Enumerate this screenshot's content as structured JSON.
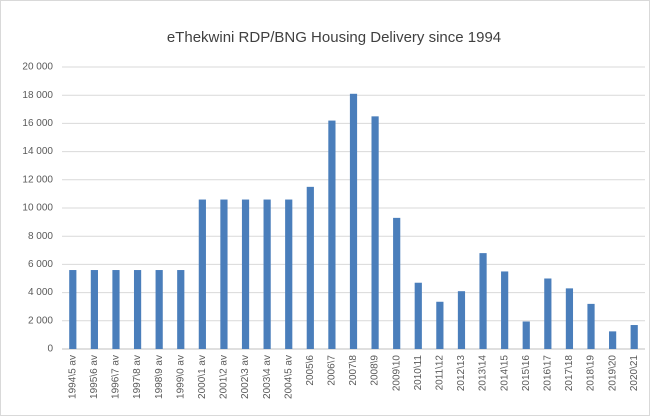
{
  "chart_data": {
    "type": "bar",
    "title": "eThekwini RDP/BNG Housing Delivery since 1994",
    "categories": [
      "1994\\5 av",
      "1995\\6 av",
      "1996\\7 av",
      "1997\\8 av",
      "1998\\9 av",
      "1999\\0 av",
      "2000\\1 av",
      "2001\\2 av",
      "2002\\3 av",
      "2003\\4 av",
      "2004\\5 av",
      "2005\\6",
      "2006\\7",
      "2007\\8",
      "2008\\9",
      "2009\\10",
      "2010\\11",
      "2011\\12",
      "2012\\13",
      "2013\\14",
      "2014\\15",
      "2015\\16",
      "2016\\17",
      "2017\\18",
      "2018\\19",
      "2019\\20",
      "2020\\21"
    ],
    "values": [
      5600,
      5600,
      5600,
      5600,
      5600,
      5600,
      10600,
      10600,
      10600,
      10600,
      10600,
      11500,
      16200,
      18100,
      16500,
      9300,
      4700,
      3350,
      4100,
      6800,
      5500,
      1950,
      5000,
      4300,
      3200,
      1250,
      1700
    ],
    "color": "#4a7ebb",
    "ylim": [
      0,
      20000
    ],
    "yticks": [
      0,
      {
        "value": 2000,
        "label": "2 000"
      },
      {
        "value": 4000,
        "label": "4 000"
      },
      {
        "value": 6000,
        "label": "6 000"
      },
      {
        "value": 8000,
        "label": "8 000"
      },
      {
        "value": 10000,
        "label": "10 000"
      },
      {
        "value": 12000,
        "label": "12 000"
      },
      {
        "value": 14000,
        "label": "14 000"
      },
      {
        "value": 16000,
        "label": "16 000"
      },
      {
        "value": 18000,
        "label": "18 000"
      },
      {
        "value": 20000,
        "label": "20 000"
      }
    ],
    "grid": true
  }
}
